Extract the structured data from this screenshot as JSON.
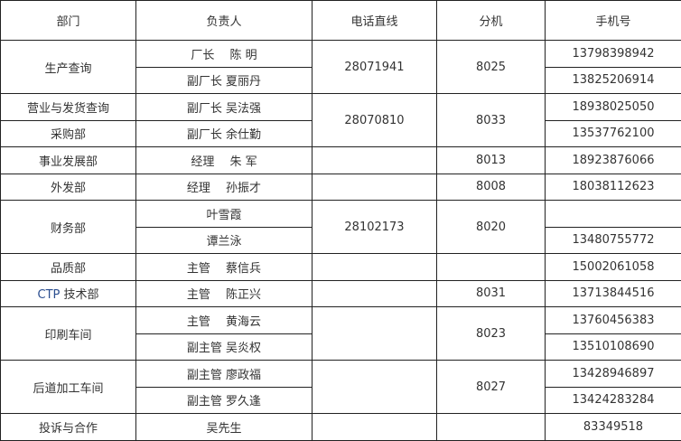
{
  "headers": [
    "部门",
    "负责人",
    "电话直线",
    "分机",
    "手机号"
  ],
  "rows": [
    {
      "dept": "生产查询",
      "person": "厂长　 陈 明",
      "line": "28071941",
      "ext": "8025",
      "mobile": "13798398942"
    },
    {
      "person": "副厂长 夏丽丹",
      "mobile": "13825206914"
    },
    {
      "dept": "营业与发货查询",
      "person": "副厂长 吴法强",
      "line": "28070810",
      "ext": "8033",
      "mobile": "18938025050"
    },
    {
      "dept": "采购部",
      "person": "副厂长 余仕勤",
      "mobile": "13537762100"
    },
    {
      "dept": "事业发展部",
      "person": "经理　 朱 军",
      "line": "",
      "ext": "8013",
      "mobile": "18923876066"
    },
    {
      "dept": "外发部",
      "person": "经理　 孙振才",
      "line": "",
      "ext": "8008",
      "mobile": "18038112623"
    },
    {
      "dept": "财务部",
      "person": "叶雪霞",
      "line": "28102173",
      "ext": "8020",
      "mobile": ""
    },
    {
      "person": "谭兰泳",
      "mobile": "13480755772"
    },
    {
      "dept": "品质部",
      "person": "主管　 蔡信兵",
      "line": "",
      "ext": "",
      "mobile": "15002061058"
    },
    {
      "dept_prefix": "CTP",
      "dept": " 技术部",
      "person": "主管　 陈正兴",
      "line": "",
      "ext": "8031",
      "mobile": "13713844516"
    },
    {
      "dept": "印刷车间",
      "person": "主管　 黄海云",
      "line": "",
      "ext": "8023",
      "mobile": "13760456383"
    },
    {
      "person": "副主管 吴炎权",
      "mobile": "13510108690"
    },
    {
      "dept": "后道加工车间",
      "person": "副主管 廖政福",
      "line": "",
      "ext": "8027",
      "mobile": "13428946897"
    },
    {
      "person": "副主管 罗久逢",
      "mobile": "13424283284"
    },
    {
      "dept": "投诉与合作",
      "person": "吴先生",
      "line": "",
      "ext": "",
      "mobile": "83349518"
    }
  ]
}
